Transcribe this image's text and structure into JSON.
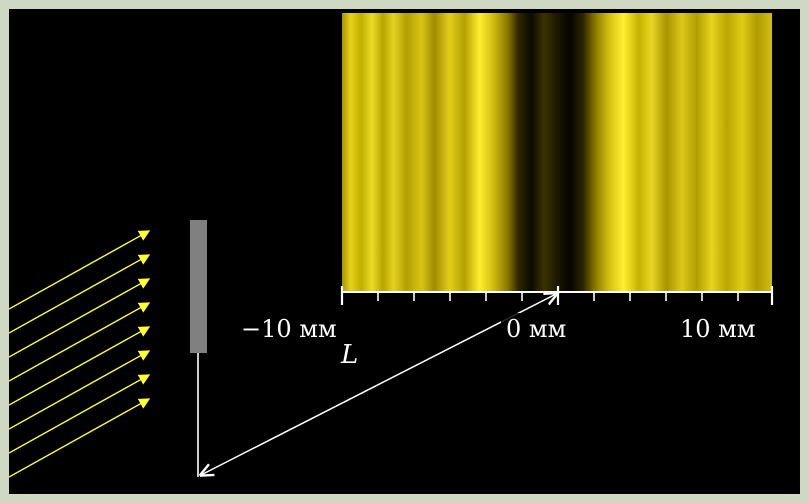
{
  "diagram": {
    "labels": {
      "tick_left": "−10 мм",
      "tick_center": "0 мм",
      "tick_right": "10 мм",
      "distance": "L"
    },
    "colors": {
      "background": "#000000",
      "frame": "#cfd8c2",
      "light_rays": "#ffff33",
      "slit_screen": "#808080",
      "pattern_base": "#c9b800",
      "axis": "#ffffff"
    },
    "axis": {
      "range_mm": [
        -12,
        12
      ],
      "labelled_ticks_mm": [
        -10,
        0,
        10
      ],
      "minor_tick_step_mm": 2
    },
    "ray_count": 8,
    "icons": [
      "incident-light-arrows",
      "slit-barrier",
      "distance-arrow"
    ]
  }
}
